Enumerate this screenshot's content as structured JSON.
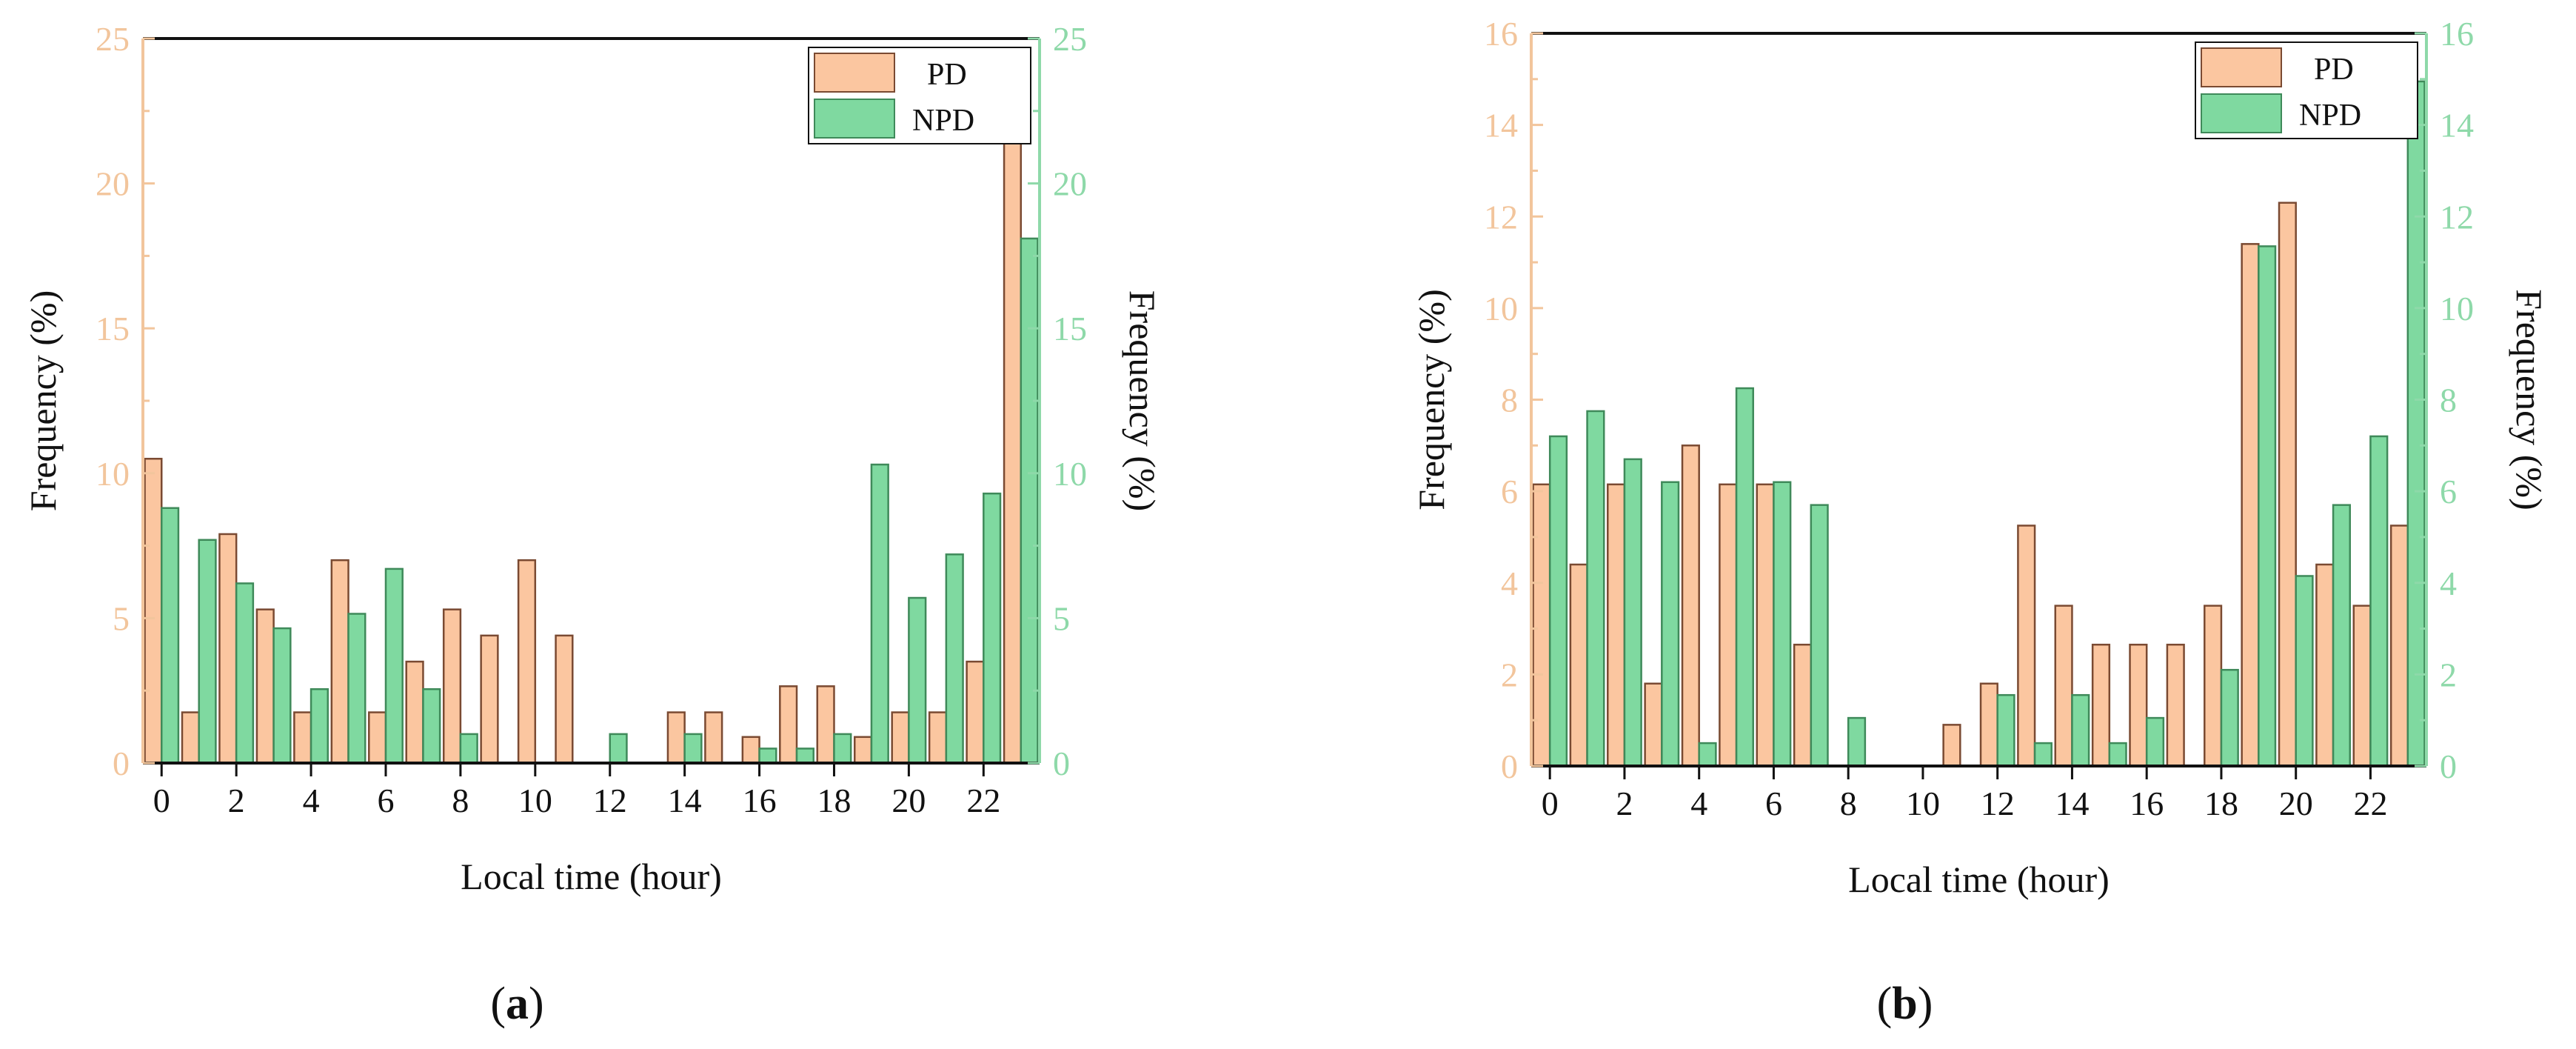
{
  "figure": {
    "panels": [
      "a",
      "b"
    ]
  },
  "colors": {
    "pd_fill": "#fbc6a0",
    "pd_stroke": "#7a4a32",
    "npd_fill": "#7fd9a0",
    "npd_stroke": "#3f8a5a",
    "left_axis": "#f2c59c",
    "right_axis": "#8ed9a9",
    "axis_line": "#111111"
  },
  "chart_data": [
    {
      "type": "bar",
      "panel_label": "a",
      "title": "",
      "xlabel": "Local time (hour)",
      "ylabel_left": "Frequency (%)",
      "ylabel_right": "Frequency (%)",
      "legend": [
        "PD",
        "NPD"
      ],
      "legend_position": "top-right",
      "x": [
        0,
        1,
        2,
        3,
        4,
        5,
        6,
        7,
        8,
        9,
        10,
        11,
        12,
        13,
        14,
        15,
        16,
        17,
        18,
        19,
        20,
        21,
        22,
        23
      ],
      "x_ticks": [
        0,
        2,
        4,
        6,
        8,
        10,
        12,
        14,
        16,
        18,
        20,
        22
      ],
      "xlim": [
        -0.5,
        23.5
      ],
      "ylim": [
        0,
        25
      ],
      "y_ticks": [
        0,
        5,
        10,
        15,
        20,
        25
      ],
      "series": [
        {
          "name": "PD",
          "values": [
            10.5,
            1.75,
            7.9,
            5.3,
            1.75,
            7.0,
            1.75,
            3.5,
            5.3,
            4.4,
            7.0,
            4.4,
            0,
            0,
            1.75,
            1.75,
            0.9,
            2.65,
            2.65,
            0.9,
            1.75,
            1.75,
            3.5,
            21.9
          ]
        },
        {
          "name": "NPD",
          "values": [
            8.8,
            7.7,
            6.2,
            4.65,
            2.55,
            5.15,
            6.7,
            2.55,
            1.0,
            0,
            0,
            0,
            1.0,
            0,
            1.0,
            0,
            0.5,
            0.5,
            1.0,
            10.3,
            5.7,
            7.2,
            9.3,
            18.1
          ]
        }
      ]
    },
    {
      "type": "bar",
      "panel_label": "b",
      "title": "",
      "xlabel": "Local time (hour)",
      "ylabel_left": "Frequency (%)",
      "ylabel_right": "Frequency (%)",
      "legend": [
        "PD",
        "NPD"
      ],
      "legend_position": "top-right",
      "x": [
        0,
        1,
        2,
        3,
        4,
        5,
        6,
        7,
        8,
        9,
        10,
        11,
        12,
        13,
        14,
        15,
        16,
        17,
        18,
        19,
        20,
        21,
        22,
        23
      ],
      "x_ticks": [
        0,
        2,
        4,
        6,
        8,
        10,
        12,
        14,
        16,
        18,
        20,
        22
      ],
      "xlim": [
        -0.5,
        23.5
      ],
      "ylim": [
        0,
        16
      ],
      "y_ticks": [
        0,
        2,
        4,
        6,
        8,
        10,
        12,
        14,
        16
      ],
      "series": [
        {
          "name": "PD",
          "values": [
            6.15,
            4.4,
            6.15,
            1.8,
            7.0,
            6.15,
            6.15,
            2.65,
            0,
            0,
            0,
            0.9,
            1.8,
            5.25,
            3.5,
            2.65,
            2.65,
            2.65,
            3.5,
            11.4,
            12.3,
            4.4,
            3.5,
            5.25
          ]
        },
        {
          "name": "NPD",
          "values": [
            7.2,
            7.75,
            6.7,
            6.2,
            0.5,
            8.25,
            6.2,
            5.7,
            1.05,
            0,
            0,
            0,
            1.55,
            0.5,
            1.55,
            0.5,
            1.05,
            0,
            2.1,
            11.35,
            4.15,
            5.7,
            7.2,
            14.95
          ]
        }
      ]
    }
  ]
}
